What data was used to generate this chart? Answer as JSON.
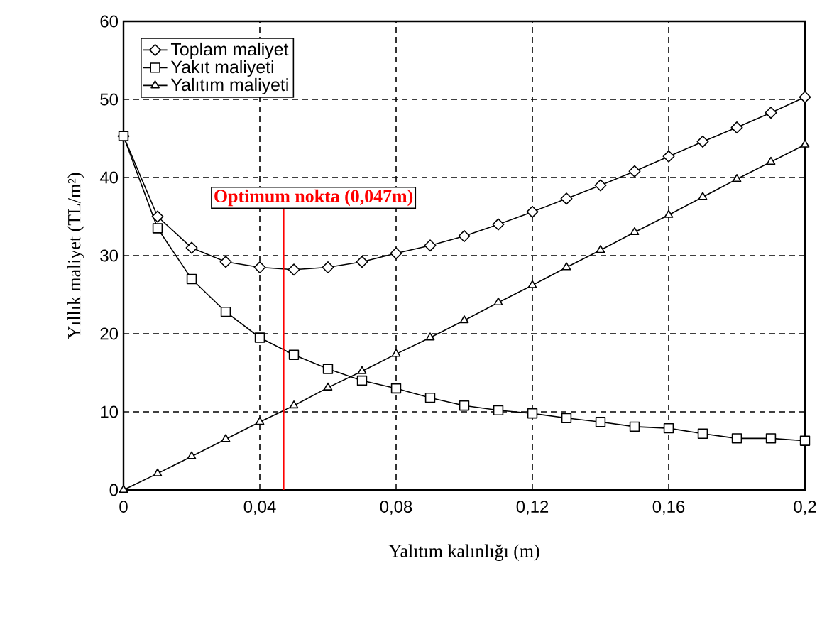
{
  "chart_data": {
    "type": "line",
    "xlabel": "Yalıtım kalınlığı (m)",
    "ylabel": "Yıllık maliyet (TL/m²)",
    "x": [
      0,
      0.01,
      0.02,
      0.03,
      0.04,
      0.05,
      0.06,
      0.07,
      0.08,
      0.09,
      0.1,
      0.11,
      0.12,
      0.13,
      0.14,
      0.15,
      0.16,
      0.17,
      0.18,
      0.19,
      0.2
    ],
    "series": [
      {
        "name": "Toplam maliyet",
        "color": "#000000",
        "marker": "diamond",
        "values": [
          45.3,
          35.0,
          31.0,
          29.2,
          28.5,
          28.2,
          28.5,
          29.2,
          30.3,
          31.3,
          32.5,
          34.0,
          35.6,
          37.3,
          39.0,
          40.8,
          42.7,
          44.6,
          46.4,
          48.3,
          50.3
        ]
      },
      {
        "name": "Yakıt maliyeti",
        "color": "#000000",
        "marker": "square",
        "values": [
          45.3,
          33.5,
          27.0,
          22.8,
          19.5,
          17.3,
          15.5,
          14.0,
          13.0,
          11.8,
          10.8,
          10.2,
          9.8,
          9.2,
          8.7,
          8.1,
          7.9,
          7.2,
          6.6,
          6.6,
          6.3
        ]
      },
      {
        "name": "Yalıtım maliyeti",
        "color": "#000000",
        "marker": "triangle",
        "values": [
          0,
          2.1,
          4.3,
          6.5,
          8.7,
          10.8,
          13.1,
          15.2,
          17.4,
          19.5,
          21.7,
          24.0,
          26.2,
          28.5,
          30.7,
          33.0,
          35.2,
          37.5,
          39.8,
          42.0,
          44.2
        ]
      }
    ],
    "xlim": [
      0,
      0.2
    ],
    "ylim": [
      0,
      60
    ],
    "xticks": [
      0,
      {
        "value": 0.04,
        "label": "0,04"
      },
      {
        "value": 0.08,
        "label": "0,08"
      },
      {
        "value": 0.12,
        "label": "0,12"
      },
      {
        "value": 0.16,
        "label": "0,16"
      },
      {
        "value": 0.2,
        "label": "0,2"
      }
    ],
    "yticks": [
      0,
      10,
      20,
      30,
      40,
      50,
      60
    ],
    "ref_lines": [
      {
        "axis": "x",
        "value": 0.047,
        "label": "Optimum nokta (0,047m)",
        "color": "#ff0000"
      }
    ],
    "grid": true,
    "legend": "top left",
    "line_style": "solid"
  }
}
